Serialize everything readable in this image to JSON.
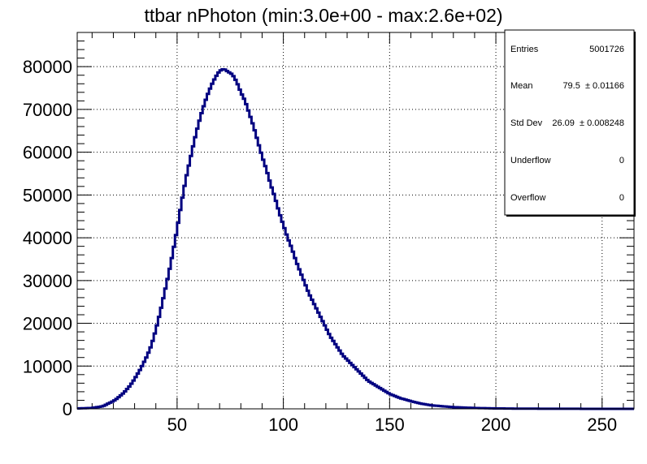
{
  "chart_data": {
    "type": "line",
    "title": "ttbar nPhoton (min:3.0e+00 - max:2.6e+02)",
    "xlabel": "",
    "ylabel": "",
    "xlim": [
      3,
      265
    ],
    "ylim": [
      0,
      88000
    ],
    "xticks": [
      50,
      100,
      150,
      200,
      250
    ],
    "xtick_labels": [
      "50",
      "100",
      "150",
      "200",
      "250"
    ],
    "yticks": [
      0,
      10000,
      20000,
      30000,
      40000,
      50000,
      60000,
      70000,
      80000
    ],
    "ytick_labels": [
      "0",
      "10000",
      "20000",
      "30000",
      "40000",
      "50000",
      "60000",
      "70000",
      "80000"
    ],
    "grid": true,
    "line_color": "#000080",
    "series": [
      {
        "style": "histogram-step",
        "x": [
          3,
          10,
          15,
          20,
          22,
          25,
          28,
          30,
          33,
          36,
          38,
          40,
          42,
          44,
          46,
          48,
          50,
          52,
          54,
          56,
          58,
          60,
          62,
          64,
          66,
          68,
          70,
          72,
          74,
          76,
          78,
          80,
          82,
          84,
          86,
          88,
          90,
          92,
          94,
          96,
          98,
          100,
          102,
          104,
          106,
          108,
          110,
          112,
          114,
          116,
          118,
          120,
          122,
          124,
          126,
          128,
          130,
          133,
          136,
          140,
          145,
          150,
          155,
          160,
          165,
          170,
          180,
          190,
          200,
          210,
          230,
          250,
          265
        ],
        "values": [
          100,
          200,
          600,
          1800,
          2500,
          3800,
          5500,
          7000,
          9500,
          12500,
          15000,
          18500,
          22500,
          27000,
          31500,
          36500,
          42000,
          48000,
          53500,
          58000,
          62500,
          66500,
          70000,
          73000,
          75500,
          77500,
          79000,
          79500,
          78800,
          78200,
          76500,
          74000,
          72000,
          69000,
          66000,
          62500,
          59000,
          56000,
          52500,
          49500,
          46000,
          43000,
          40000,
          37500,
          34500,
          32000,
          29500,
          27000,
          25000,
          23000,
          21000,
          19000,
          17000,
          15500,
          14000,
          12500,
          11500,
          10000,
          8500,
          6500,
          5000,
          3500,
          2500,
          1800,
          1200,
          800,
          400,
          200,
          100,
          50,
          20,
          5,
          0
        ]
      }
    ],
    "stats_box": {
      "placement": "top-right",
      "rows": [
        {
          "label": "Entries",
          "value": "5001726"
        },
        {
          "label": "Mean",
          "value": "79.5  ± 0.01166"
        },
        {
          "label": "Std Dev",
          "value": "26.09  ± 0.008248"
        },
        {
          "label": "Underflow",
          "value": "0"
        },
        {
          "label": "Overflow",
          "value": "0"
        }
      ]
    }
  }
}
